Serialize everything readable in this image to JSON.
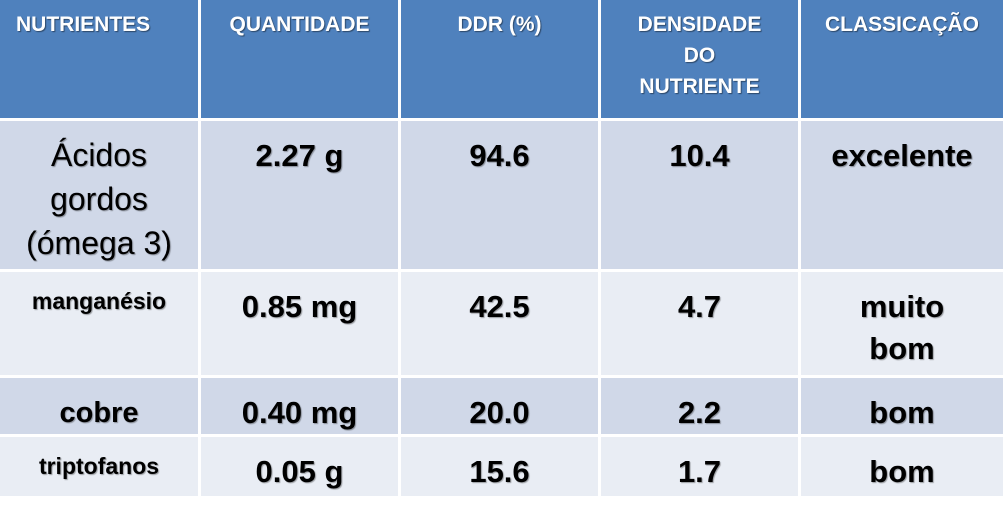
{
  "table": {
    "headers": [
      "NUTRIENTES",
      "QUANTIDADE",
      "DDR (%)",
      "DENSIDADE DO NUTRIENTE",
      "CLASSICAÇÃO"
    ],
    "header_lines": {
      "densidade": [
        "DENSIDADE",
        "DO",
        "NUTRIENTE"
      ]
    },
    "rows": [
      {
        "nutriente_lines": [
          "Ácidos",
          "gordos",
          "(ómega 3)"
        ],
        "nutriente": "Ácidos gordos (ómega 3)",
        "quantidade": "2.27 g",
        "ddr": "94.6",
        "densidade": "10.4",
        "classificacao_lines": [
          "excelente"
        ],
        "classificacao": "excelente"
      },
      {
        "nutriente_lines": [
          "manganésio"
        ],
        "nutriente": "manganésio",
        "quantidade": "0.85 mg",
        "ddr": "42.5",
        "densidade": "4.7",
        "classificacao_lines": [
          "muito",
          "bom"
        ],
        "classificacao": "muito bom"
      },
      {
        "nutriente_lines": [
          "cobre"
        ],
        "nutriente": "cobre",
        "quantidade": "0.40 mg",
        "ddr": "20.0",
        "densidade": "2.2",
        "classificacao_lines": [
          "bom"
        ],
        "classificacao": "bom"
      },
      {
        "nutriente_lines": [
          "triptofanos"
        ],
        "nutriente": "triptofanos",
        "quantidade": "0.05 g",
        "ddr": "15.6",
        "densidade": "1.7",
        "classificacao_lines": [
          "bom"
        ],
        "classificacao": "bom"
      }
    ],
    "colors": {
      "header_bg": "#4f81bd",
      "row_odd_bg": "#d0d8e8",
      "row_even_bg": "#e9edf4",
      "header_text": "#ffffff",
      "body_text": "#000000"
    }
  }
}
